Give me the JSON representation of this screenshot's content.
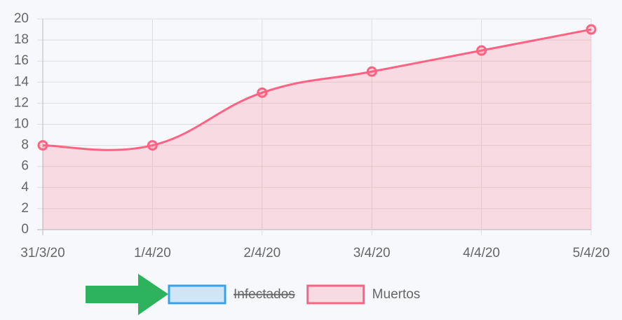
{
  "chart_data": {
    "type": "line",
    "categories": [
      "31/3/20",
      "1/4/20",
      "2/4/20",
      "3/4/20",
      "4/4/20",
      "5/4/20"
    ],
    "series": [
      {
        "name": "Infectados",
        "color": "#36a2eb",
        "hidden": true,
        "values": [
          null,
          null,
          null,
          null,
          null,
          null
        ]
      },
      {
        "name": "Muertos",
        "color": "#ff6384",
        "hidden": false,
        "values": [
          8,
          8,
          13,
          15,
          17,
          19
        ]
      }
    ],
    "ylim": [
      0,
      20
    ],
    "yticks": [
      0,
      2,
      4,
      6,
      8,
      10,
      12,
      14,
      16,
      18,
      20
    ],
    "grid": true,
    "fill": true,
    "smooth": true,
    "legend": "bottom"
  }
}
